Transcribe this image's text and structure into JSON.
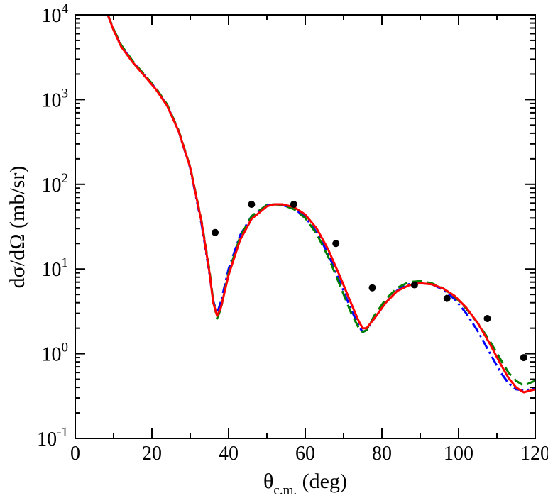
{
  "chart_data": {
    "type": "line",
    "title": "",
    "xlabel": {
      "main": "θ",
      "sub": "c.m.",
      "rest": " (deg)"
    },
    "ylabel": "dσ/dΩ (mb/sr)",
    "xlim": [
      0,
      120
    ],
    "ylim": [
      0.1,
      10000
    ],
    "yscale": "log",
    "x_ticks": [
      {
        "value": 0,
        "label": "0"
      },
      {
        "value": 20,
        "label": "20"
      },
      {
        "value": 40,
        "label": "40"
      },
      {
        "value": 60,
        "label": "60"
      },
      {
        "value": 80,
        "label": "80"
      },
      {
        "value": 100,
        "label": "100"
      },
      {
        "value": 120,
        "label": "120"
      }
    ],
    "y_ticks": [
      {
        "value": 0.1,
        "base": "10",
        "exp": "-1"
      },
      {
        "value": 1,
        "base": "10",
        "exp": "0"
      },
      {
        "value": 10,
        "base": "10",
        "exp": "1"
      },
      {
        "value": 100,
        "base": "10",
        "exp": "2"
      },
      {
        "value": 1000,
        "base": "10",
        "exp": "3"
      },
      {
        "value": 10000,
        "base": "10",
        "exp": "4"
      }
    ],
    "grid": false,
    "series": [
      {
        "kind": "line",
        "color": "#0000ff",
        "dash": "dot-dash",
        "x": [
          8.5,
          10,
          12,
          15,
          18,
          21,
          24,
          27,
          30,
          33,
          35,
          36,
          37,
          38,
          40,
          43,
          46,
          50,
          52,
          54,
          57,
          60,
          63,
          66,
          69,
          72,
          74,
          75,
          76,
          78,
          81,
          84,
          87,
          90,
          93,
          96,
          99,
          102,
          105,
          108,
          111,
          113,
          115,
          117,
          119,
          120
        ],
        "y": [
          10000,
          6700,
          4300,
          2800,
          1950,
          1350,
          850,
          420,
          155,
          33,
          8.8,
          4.2,
          3.0,
          4.1,
          10,
          25,
          42,
          57,
          58,
          57,
          52,
          41,
          27,
          15,
          7.1,
          3.3,
          2.1,
          1.8,
          1.9,
          2.6,
          4.0,
          5.6,
          6.6,
          6.9,
          6.6,
          5.7,
          4.4,
          3.0,
          1.85,
          1.05,
          0.6,
          0.45,
          0.38,
          0.37,
          0.38,
          0.4
        ]
      },
      {
        "kind": "line",
        "color": "#008000",
        "dash": "dashed",
        "x": [
          8.5,
          10,
          12,
          15,
          18,
          21,
          24,
          27,
          30,
          33,
          35,
          36,
          37,
          38,
          40,
          43,
          46,
          50,
          52,
          54,
          57,
          60,
          63,
          66,
          69,
          72,
          74,
          75,
          76,
          78,
          81,
          84,
          87,
          90,
          93,
          96,
          99,
          102,
          105,
          108,
          111,
          113,
          115,
          117,
          119,
          120
        ],
        "y": [
          10000,
          6800,
          4400,
          2850,
          1980,
          1380,
          870,
          430,
          160,
          36,
          9.8,
          4.2,
          2.6,
          3.4,
          9.0,
          24,
          42,
          57,
          58,
          57,
          51,
          40,
          26,
          14,
          6.5,
          3.0,
          2.0,
          1.8,
          1.9,
          2.8,
          4.4,
          6.0,
          7.0,
          7.2,
          6.8,
          5.9,
          4.7,
          3.4,
          2.3,
          1.45,
          0.85,
          0.6,
          0.48,
          0.42,
          0.46,
          0.48
        ]
      },
      {
        "kind": "line",
        "color": "#ff0000",
        "dash": "solid",
        "x": [
          8.5,
          10,
          12,
          15,
          18,
          21,
          24,
          27,
          30,
          33,
          35,
          36,
          37,
          38,
          40,
          43,
          46,
          50,
          52,
          54,
          57,
          60,
          63,
          66,
          69,
          72,
          74,
          75,
          76,
          78,
          81,
          84,
          87,
          90,
          93,
          96,
          99,
          102,
          105,
          108,
          111,
          113,
          115,
          117,
          119,
          120
        ],
        "y": [
          10000,
          6600,
          4200,
          2750,
          1920,
          1330,
          840,
          420,
          158,
          35,
          9.2,
          4.0,
          2.8,
          3.5,
          8.5,
          22,
          39,
          55,
          58,
          58,
          54,
          44,
          30,
          17,
          8.3,
          3.9,
          2.4,
          2.0,
          2.0,
          2.6,
          4.0,
          5.5,
          6.4,
          6.8,
          6.6,
          5.9,
          4.8,
          3.5,
          2.3,
          1.35,
          0.75,
          0.52,
          0.4,
          0.35,
          0.37,
          0.38
        ]
      },
      {
        "kind": "scatter",
        "color": "#000000",
        "x": [
          36.5,
          46,
          57,
          68,
          77.5,
          88.5,
          97,
          107.5,
          117
        ],
        "y": [
          27,
          58,
          58,
          20,
          6.0,
          6.5,
          4.5,
          2.6,
          0.9
        ]
      }
    ]
  }
}
